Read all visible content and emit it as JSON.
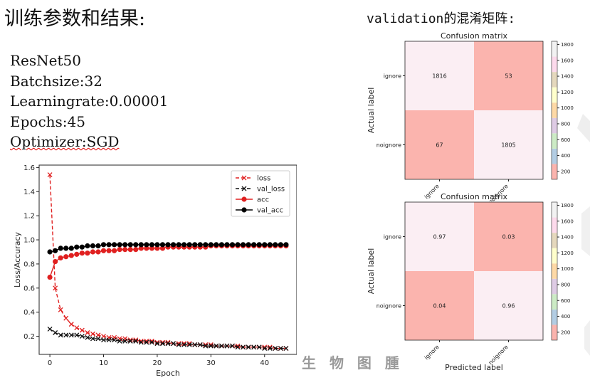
{
  "heading": "训练参数和结果:",
  "params": [
    "ResNet50",
    "Batchsize:32",
    "Learningrate:0.00001",
    "Epochs:45",
    "Optimizer:SGD"
  ],
  "validation_heading": "validation的混淆矩阵:",
  "watermark": "生 物 图 腫",
  "chart_data": [
    {
      "type": "line",
      "xlabel": "Epoch",
      "ylabel": "Loss/Accuracy",
      "xlim": [
        -2,
        46
      ],
      "ylim": [
        0.05,
        1.62
      ],
      "xticks": [
        0,
        10,
        20,
        30,
        40
      ],
      "yticks": [
        0.2,
        0.4,
        0.6,
        0.8,
        1.0,
        1.2,
        1.4,
        1.6
      ],
      "legend": "top-right",
      "grid": false,
      "x": [
        0,
        1,
        2,
        3,
        4,
        5,
        6,
        7,
        8,
        9,
        10,
        11,
        12,
        13,
        14,
        15,
        16,
        17,
        18,
        19,
        20,
        21,
        22,
        23,
        24,
        25,
        26,
        27,
        28,
        29,
        30,
        31,
        32,
        33,
        34,
        35,
        36,
        37,
        38,
        39,
        40,
        41,
        42,
        43,
        44
      ],
      "series": [
        {
          "name": "loss",
          "color": "#e02020",
          "style": "dashed",
          "marker": "x",
          "values": [
            1.54,
            0.6,
            0.42,
            0.35,
            0.3,
            0.27,
            0.25,
            0.23,
            0.22,
            0.21,
            0.2,
            0.19,
            0.19,
            0.18,
            0.18,
            0.17,
            0.17,
            0.16,
            0.16,
            0.16,
            0.15,
            0.15,
            0.15,
            0.14,
            0.14,
            0.14,
            0.14,
            0.13,
            0.13,
            0.13,
            0.13,
            0.12,
            0.12,
            0.12,
            0.12,
            0.12,
            0.11,
            0.11,
            0.11,
            0.11,
            0.11,
            0.11,
            0.1,
            0.1,
            0.1
          ]
        },
        {
          "name": "val_loss",
          "color": "#111111",
          "style": "dashed",
          "marker": "x",
          "values": [
            0.26,
            0.23,
            0.21,
            0.21,
            0.21,
            0.21,
            0.2,
            0.19,
            0.18,
            0.18,
            0.17,
            0.17,
            0.17,
            0.16,
            0.16,
            0.16,
            0.16,
            0.15,
            0.15,
            0.15,
            0.14,
            0.14,
            0.14,
            0.14,
            0.13,
            0.13,
            0.13,
            0.13,
            0.13,
            0.12,
            0.12,
            0.12,
            0.12,
            0.12,
            0.12,
            0.11,
            0.11,
            0.11,
            0.11,
            0.11,
            0.1,
            0.1,
            0.1,
            0.1,
            0.1
          ]
        },
        {
          "name": "acc",
          "color": "#e02020",
          "style": "solid",
          "marker": "o",
          "values": [
            0.69,
            0.82,
            0.85,
            0.86,
            0.87,
            0.88,
            0.89,
            0.89,
            0.9,
            0.9,
            0.91,
            0.91,
            0.91,
            0.92,
            0.92,
            0.92,
            0.92,
            0.93,
            0.93,
            0.93,
            0.93,
            0.93,
            0.94,
            0.94,
            0.94,
            0.94,
            0.94,
            0.94,
            0.94,
            0.94,
            0.95,
            0.95,
            0.95,
            0.95,
            0.95,
            0.95,
            0.95,
            0.95,
            0.95,
            0.95,
            0.95,
            0.95,
            0.95,
            0.95,
            0.95
          ]
        },
        {
          "name": "val_acc",
          "color": "#000000",
          "style": "solid",
          "marker": "o",
          "values": [
            0.9,
            0.91,
            0.93,
            0.93,
            0.93,
            0.94,
            0.94,
            0.95,
            0.95,
            0.95,
            0.96,
            0.96,
            0.96,
            0.96,
            0.96,
            0.96,
            0.96,
            0.96,
            0.96,
            0.96,
            0.96,
            0.96,
            0.96,
            0.96,
            0.96,
            0.96,
            0.96,
            0.96,
            0.96,
            0.96,
            0.96,
            0.96,
            0.96,
            0.96,
            0.96,
            0.96,
            0.96,
            0.96,
            0.96,
            0.96,
            0.96,
            0.96,
            0.96,
            0.96,
            0.96
          ]
        }
      ]
    },
    {
      "type": "heatmap",
      "title": "Confusion matrix",
      "ylabel": "Actual label",
      "row_labels": [
        "ignore",
        "noignore"
      ],
      "col_labels": [
        "ignore",
        "noignore"
      ],
      "values": [
        [
          1816,
          53
        ],
        [
          67,
          1805
        ]
      ],
      "colorbar_ticks": [
        200,
        400,
        600,
        800,
        1000,
        1200,
        1400,
        1600,
        1800
      ]
    },
    {
      "type": "heatmap",
      "title": "Confusion matrix",
      "xlabel": "Predicted label",
      "ylabel": "Actual label",
      "row_labels": [
        "ignore",
        "noignore"
      ],
      "col_labels": [
        "ignore",
        "noignore"
      ],
      "values": [
        [
          0.97,
          0.03
        ],
        [
          0.04,
          0.96
        ]
      ],
      "colorbar_ticks": [
        200,
        400,
        600,
        800,
        1000,
        1200,
        1400,
        1600,
        1800
      ]
    }
  ],
  "palette": {
    "high": "#fbeef3",
    "low": "#fbb4ae",
    "colorbar": [
      "#fbb4ae",
      "#b3cde3",
      "#ccebc5",
      "#decbe4",
      "#fed9a6",
      "#ffffcc",
      "#e5d8bd",
      "#fddaec",
      "#f2f2f2"
    ]
  }
}
